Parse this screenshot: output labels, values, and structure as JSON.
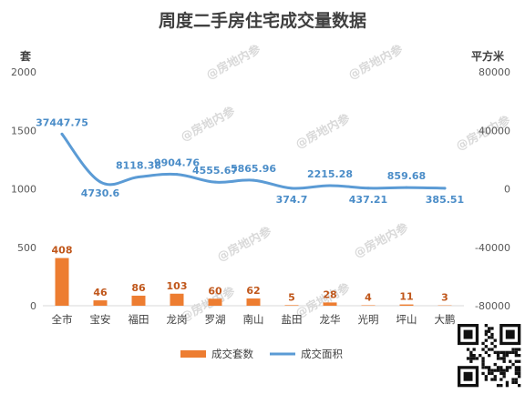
{
  "chart_data": {
    "type": "bar+line",
    "title": "周度二手房住宅成交量数据",
    "left_unit": "套",
    "right_unit": "平方米",
    "y_left_ticks": [
      "0",
      "500",
      "1000",
      "1500",
      "2000"
    ],
    "y_right_ticks": [
      "-80000",
      "-40000",
      "0",
      "40000",
      "80000"
    ],
    "ylim_left": [
      0,
      2000
    ],
    "ylim_right": [
      -80000,
      80000
    ],
    "categories": [
      "全市",
      "宝安",
      "福田",
      "龙岗",
      "罗湖",
      "南山",
      "盐田",
      "龙华",
      "光明",
      "坪山",
      "大鹏"
    ],
    "series": [
      {
        "name": "成交套数",
        "type": "bar",
        "axis": "left",
        "color": "#ed7d31",
        "values": [
          408,
          46,
          86,
          103,
          60,
          62,
          5,
          28,
          4,
          11,
          3
        ],
        "labels": [
          "408",
          "46",
          "86",
          "103",
          "60",
          "62",
          "5",
          "28",
          "4",
          "11",
          "3"
        ]
      },
      {
        "name": "成交面积",
        "type": "line",
        "axis": "right",
        "color": "#5b9bd5",
        "values": [
          37447.75,
          4730.6,
          8118.38,
          9904.76,
          4555.67,
          5865.96,
          374.7,
          2215.28,
          437.21,
          859.68,
          385.51
        ],
        "labels": [
          "37447.75",
          "4730.6",
          "8118.38",
          "9904.76",
          "4555.67",
          "5865.96",
          "374.7",
          "2215.28",
          "437.21",
          "859.68",
          "385.51"
        ]
      }
    ],
    "grid": false,
    "legend_position": "bottom"
  },
  "watermark": "@房地内参"
}
